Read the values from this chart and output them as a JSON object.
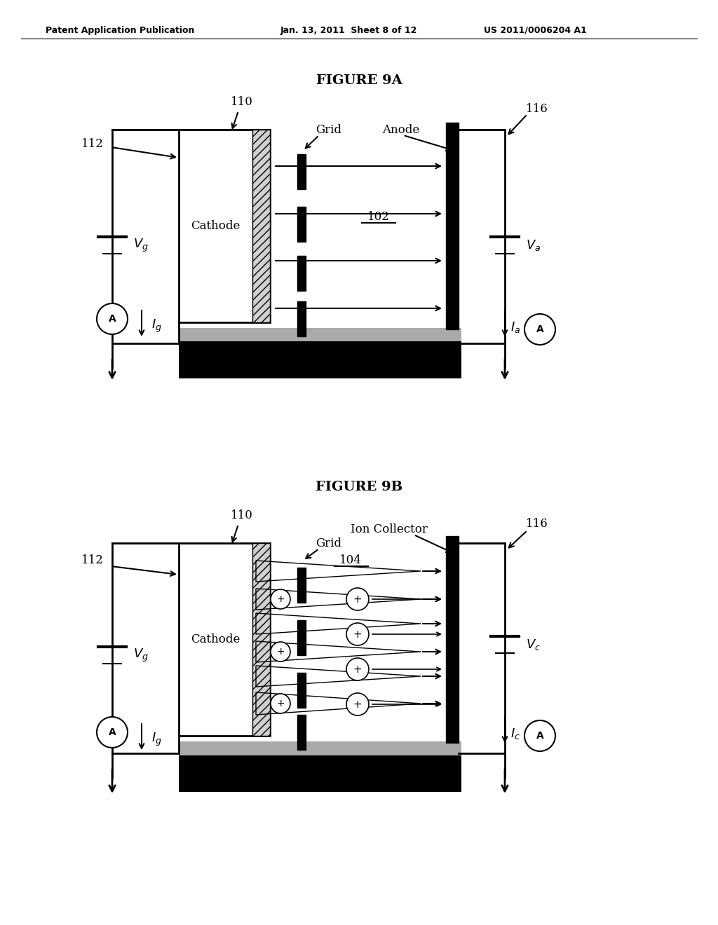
{
  "bg_color": "#ffffff",
  "header_text": "Patent Application Publication",
  "header_date": "Jan. 13, 2011  Sheet 8 of 12",
  "header_patent": "US 2011/0006204 A1",
  "fig_title_a": "FIGURE 9A",
  "fig_title_b": "FIGURE 9B"
}
